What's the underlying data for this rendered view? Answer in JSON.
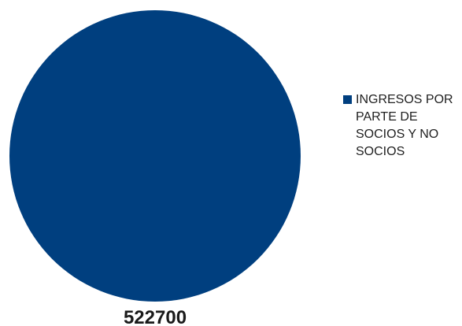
{
  "chart_data": {
    "type": "pie",
    "title": "",
    "slices": [
      {
        "label": "INGRESOS POR PARTE DE SOCIOS Y NO SOCIOS",
        "value": 522700,
        "value_label": "522700",
        "color": "#003F7F"
      }
    ],
    "legend": {
      "placement": "right",
      "entries": [
        "INGRESOS POR PARTE DE SOCIOS Y NO SOCIOS"
      ]
    }
  }
}
